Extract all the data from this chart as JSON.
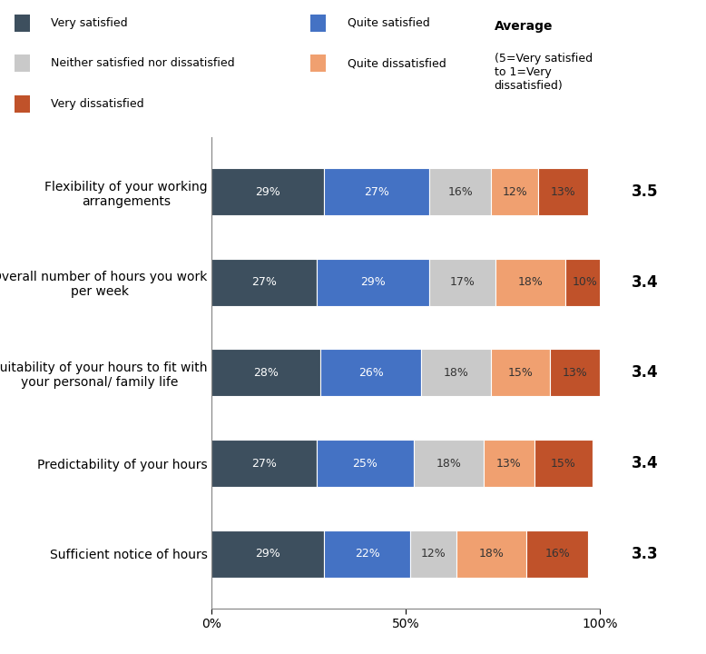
{
  "categories": [
    "Flexibility of your working\narrangements",
    "Overall number of hours you work\nper week",
    "Suitability of your hours to fit with\nyour personal/ family life",
    "Predictability of your hours",
    "Sufficient notice of hours"
  ],
  "series": {
    "Very satisfied": [
      29,
      27,
      28,
      27,
      29
    ],
    "Quite satisfied": [
      27,
      29,
      26,
      25,
      22
    ],
    "Neither satisfied nor dissatisfied": [
      16,
      17,
      18,
      18,
      12
    ],
    "Quite dissatisfied": [
      12,
      18,
      15,
      13,
      18
    ],
    "Very dissatisfied": [
      13,
      10,
      13,
      15,
      16
    ]
  },
  "colors": {
    "Very satisfied": "#3d4f5e",
    "Quite satisfied": "#4472c4",
    "Neither satisfied nor dissatisfied": "#c9c9c9",
    "Quite dissatisfied": "#f0a070",
    "Very dissatisfied": "#c0522a"
  },
  "averages": [
    "3.5",
    "3.4",
    "3.4",
    "3.4",
    "3.3"
  ],
  "legend_col1": [
    "Very satisfied",
    "Neither satisfied nor dissatisfied",
    "Very dissatisfied"
  ],
  "legend_col2": [
    "Quite satisfied",
    "Quite dissatisfied"
  ],
  "avg_label_bold": "Average",
  "avg_label_rest": "(5=Very satisfied\nto 1=Very\ndissatisfied)",
  "xlabel_ticks": [
    "0%",
    "50%",
    "100%"
  ],
  "xlabel_vals": [
    0,
    50,
    100
  ],
  "bar_height": 0.52,
  "figsize": [
    7.78,
    7.2
  ],
  "dpi": 100
}
